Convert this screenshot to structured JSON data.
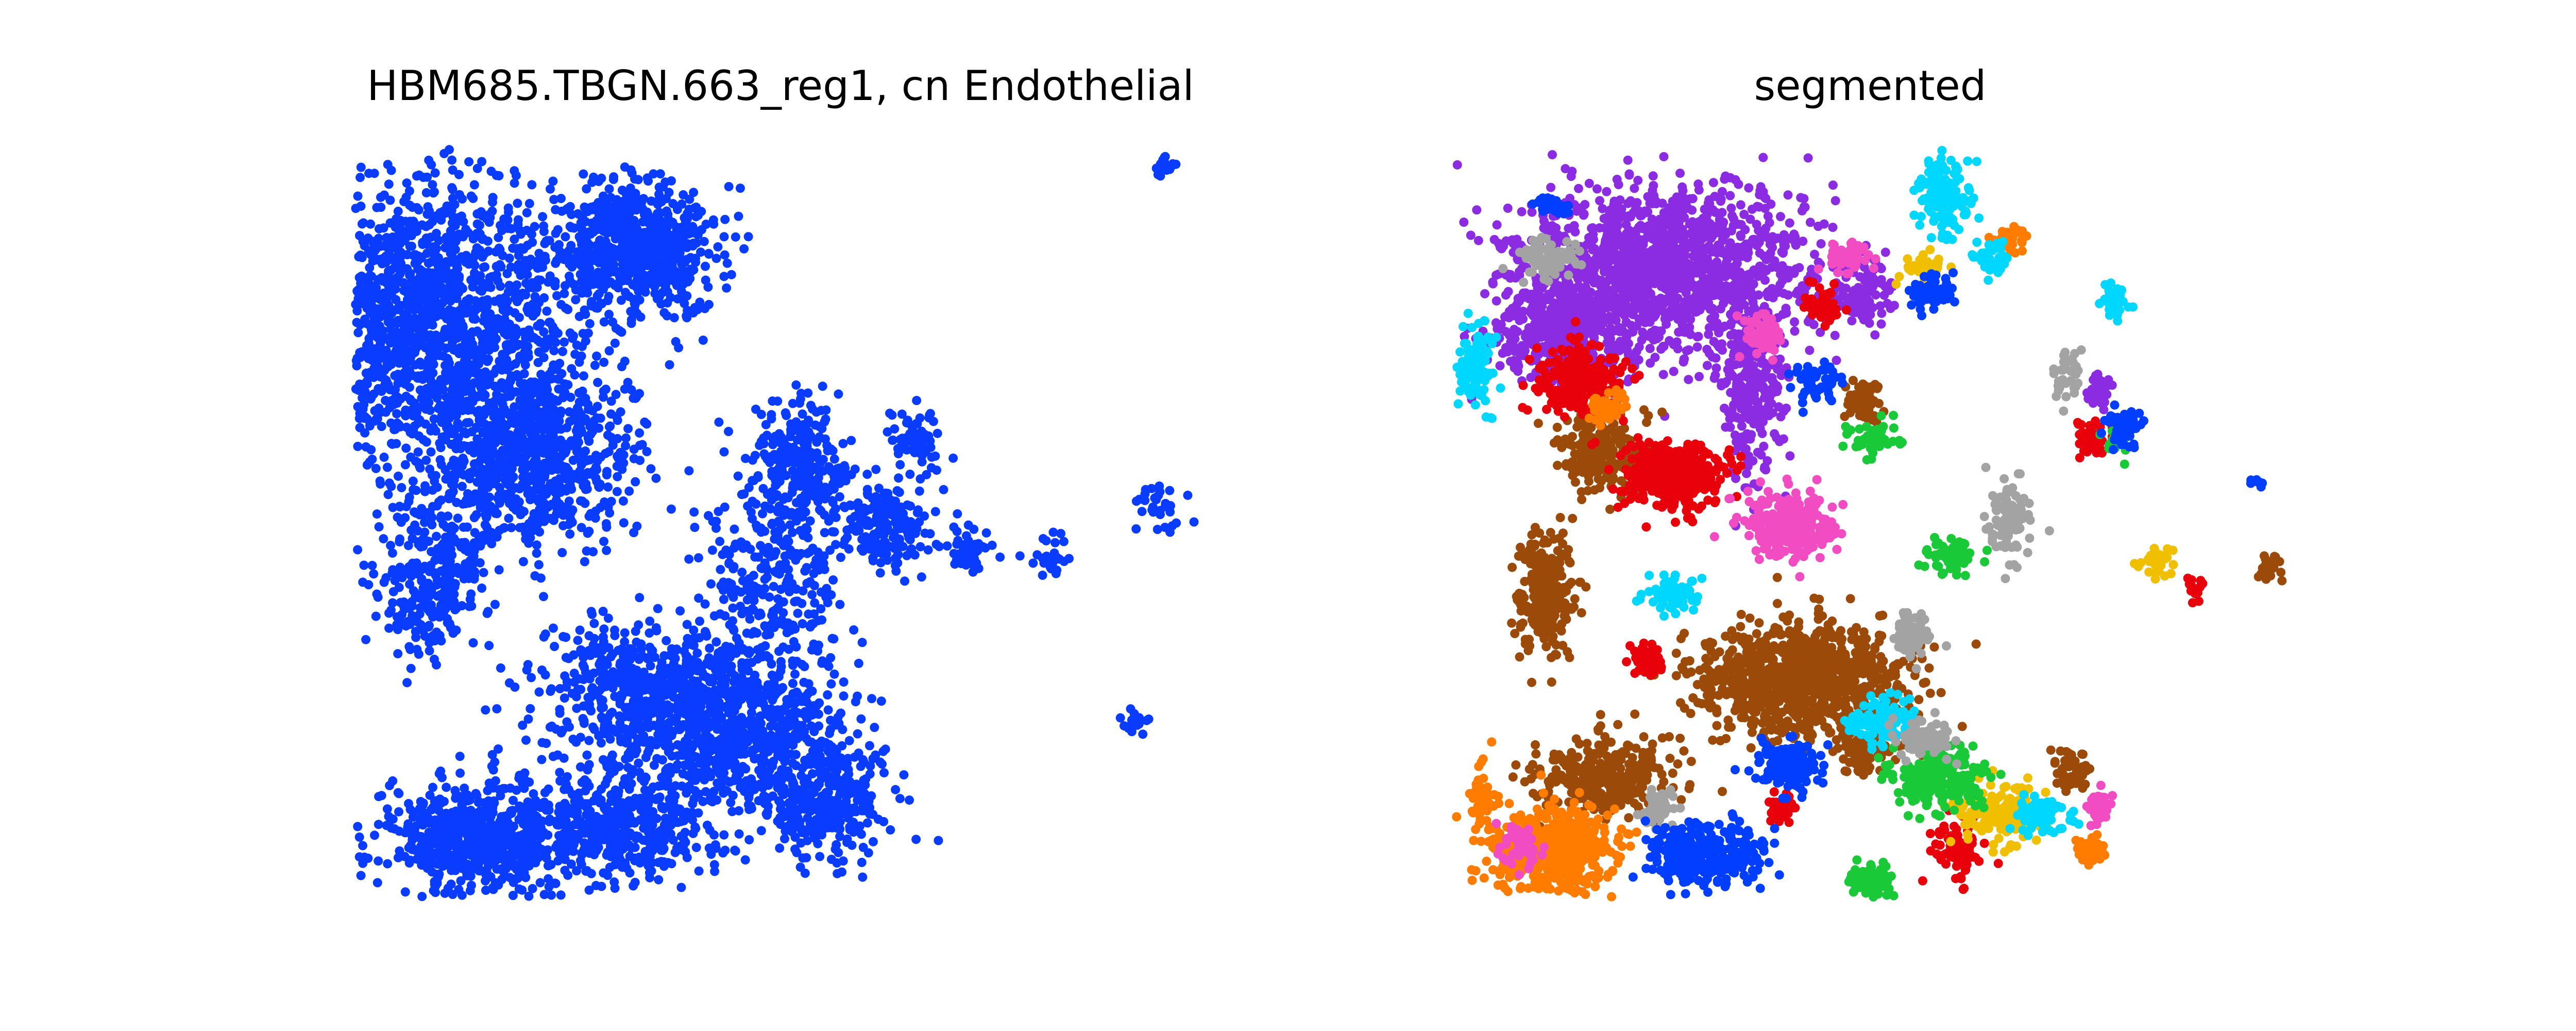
{
  "panels": {
    "left": {
      "title": "HBM685.TBGN.663_reg1, cn Endothelial"
    },
    "right": {
      "title": "segmented"
    }
  },
  "chart_data": [
    {
      "type": "scatter",
      "title": "HBM685.TBGN.663_reg1, cn Endothelial",
      "xlabel": "",
      "ylabel": "",
      "axes_visible": false,
      "grid": false,
      "series": [
        {
          "color": "#0a3cff",
          "regions": [
            [
              820,
              620,
              340,
              300,
              1800
            ],
            [
              1240,
              480,
              170,
              140,
              700
            ],
            [
              1030,
              880,
              230,
              200,
              800
            ],
            [
              840,
              1120,
              120,
              170,
              280
            ],
            [
              1260,
              1340,
              230,
              140,
              600
            ],
            [
              1450,
              1420,
              220,
              180,
              600
            ],
            [
              920,
              1630,
              200,
              130,
              600
            ],
            [
              1200,
              1600,
              200,
              130,
              500
            ],
            [
              1600,
              1560,
              140,
              120,
              300
            ],
            [
              1560,
              900,
              100,
              140,
              250
            ],
            [
              1720,
              1020,
              90,
              100,
              180
            ],
            [
              1500,
              1100,
              160,
              220,
              300
            ],
            [
              1780,
              850,
              60,
              60,
              60
            ],
            [
              1880,
              1080,
              60,
              60,
              50
            ],
            [
              2040,
              1080,
              40,
              60,
              30
            ],
            [
              2260,
              320,
              30,
              30,
              20
            ],
            [
              2250,
              980,
              60,
              60,
              30
            ],
            [
              2200,
              1400,
              40,
              30,
              15
            ]
          ]
        }
      ]
    },
    {
      "type": "scatter",
      "title": "segmented",
      "xlabel": "",
      "ylabel": "",
      "axes_visible": false,
      "grid": false,
      "series": [
        {
          "color": "#8b2be2",
          "regions": [
            [
              3230,
              520,
              320,
              180,
              1400
            ],
            [
              3020,
              640,
              160,
              110,
              400
            ],
            [
              3400,
              760,
              70,
              200,
              250
            ],
            [
              3610,
              570,
              60,
              60,
              100
            ],
            [
              4070,
              760,
              30,
              40,
              30
            ]
          ]
        },
        {
          "color": "#9b4a0a",
          "regions": [
            [
              3500,
              1320,
              230,
              120,
              900
            ],
            [
              3120,
              1510,
              160,
              90,
              300
            ],
            [
              3000,
              1150,
              60,
              130,
              250
            ],
            [
              3110,
              880,
              90,
              80,
              220
            ],
            [
              3620,
              780,
              40,
              50,
              60
            ],
            [
              3620,
              1460,
              60,
              60,
              80
            ],
            [
              4020,
              1490,
              40,
              40,
              50
            ],
            [
              4400,
              1100,
              30,
              30,
              20
            ]
          ]
        },
        {
          "color": "#e8000b",
          "regions": [
            [
              3250,
              920,
              110,
              70,
              350
            ],
            [
              3070,
              740,
              90,
              80,
              220
            ],
            [
              3540,
              590,
              40,
              40,
              60
            ],
            [
              3800,
              1640,
              50,
              60,
              90
            ],
            [
              3200,
              1280,
              40,
              30,
              60
            ],
            [
              4060,
              850,
              40,
              40,
              50
            ],
            [
              4260,
              1140,
              30,
              30,
              20
            ],
            [
              3460,
              1570,
              30,
              30,
              30
            ]
          ]
        },
        {
          "color": "#f0c000",
          "regions": [
            [
              3880,
              1580,
              80,
              70,
              150
            ],
            [
              4190,
              1090,
              40,
              30,
              40
            ],
            [
              3740,
              520,
              40,
              30,
              40
            ]
          ]
        },
        {
          "color": "#ff7c00",
          "regions": [
            [
              3010,
              1650,
              140,
              100,
              500
            ],
            [
              2880,
              1550,
              30,
              80,
              60
            ],
            [
              3120,
              790,
              40,
              40,
              40
            ],
            [
              4060,
              1650,
              40,
              30,
              40
            ],
            [
              3900,
              460,
              40,
              30,
              30
            ]
          ]
        },
        {
          "color": "#1ac938",
          "regions": [
            [
              3760,
              1510,
              110,
              60,
              220
            ],
            [
              3630,
              1710,
              50,
              40,
              70
            ],
            [
              3790,
              1080,
              60,
              50,
              60
            ],
            [
              3640,
              850,
              60,
              40,
              50
            ],
            [
              4110,
              860,
              30,
              40,
              25
            ]
          ]
        },
        {
          "color": "#00d7ff",
          "regions": [
            [
              3650,
              1400,
              70,
              50,
              120
            ],
            [
              3780,
              380,
              60,
              80,
              120
            ],
            [
              2860,
              720,
              40,
              90,
              100
            ],
            [
              3250,
              1150,
              60,
              40,
              80
            ],
            [
              3960,
              1580,
              60,
              40,
              80
            ],
            [
              4110,
              580,
              30,
              30,
              30
            ],
            [
              3860,
              500,
              40,
              30,
              40
            ]
          ]
        },
        {
          "color": "#f14cc1",
          "regions": [
            [
              3470,
              1020,
              100,
              70,
              220
            ],
            [
              3580,
              500,
              50,
              40,
              60
            ],
            [
              3420,
              650,
              40,
              50,
              60
            ],
            [
              2950,
              1640,
              40,
              50,
              50
            ],
            [
              4070,
              1570,
              30,
              30,
              25
            ]
          ]
        },
        {
          "color": "#a3a3a3",
          "regions": [
            [
              3000,
              500,
              70,
              40,
              80
            ],
            [
              3710,
              1230,
              40,
              60,
              80
            ],
            [
              3900,
              1010,
              50,
              80,
              100
            ],
            [
              3740,
              1430,
              60,
              50,
              80
            ],
            [
              4010,
              730,
              30,
              50,
              40
            ],
            [
              3220,
              1570,
              40,
              40,
              50
            ]
          ]
        },
        {
          "color": "#023eff",
          "regions": [
            [
              3310,
              1660,
              120,
              70,
              300
            ],
            [
              3470,
              1490,
              70,
              50,
              150
            ],
            [
              3530,
              740,
              50,
              40,
              60
            ],
            [
              3010,
              400,
              40,
              30,
              30
            ],
            [
              3750,
              570,
              50,
              40,
              60
            ],
            [
              4120,
              830,
              40,
              40,
              50
            ],
            [
              4380,
              940,
              20,
              20,
              10
            ]
          ]
        }
      ]
    }
  ]
}
